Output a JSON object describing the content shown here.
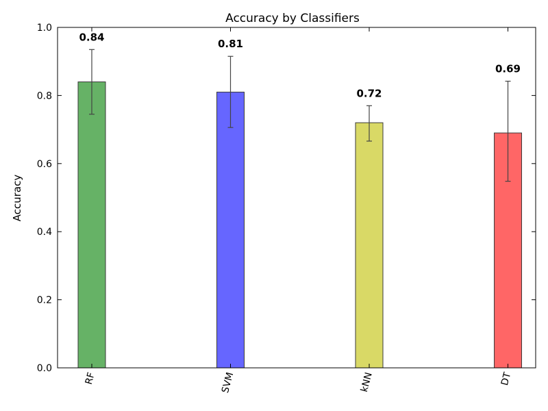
{
  "chart_data": {
    "type": "bar",
    "title": "Accuracy by Classifiers",
    "xlabel": "",
    "ylabel": "Accuracy",
    "categories": [
      "RF",
      "SVM",
      "kNN",
      "DT"
    ],
    "values": [
      0.84,
      0.81,
      0.72,
      0.69
    ],
    "value_labels": [
      "0.84",
      "0.81",
      "0.72",
      "0.69"
    ],
    "error_low": [
      0.745,
      0.706,
      0.666,
      0.548
    ],
    "error_high": [
      0.935,
      0.915,
      0.77,
      0.842
    ],
    "colors": [
      "#66b266",
      "#6666ff",
      "#d9d966",
      "#ff6666"
    ],
    "ylim": [
      0,
      1.0
    ],
    "yticks": [
      "0.0",
      "0.2",
      "0.4",
      "0.6",
      "0.8",
      "1.0"
    ],
    "grid": false,
    "xtick_rotation": "vertical-ish"
  }
}
